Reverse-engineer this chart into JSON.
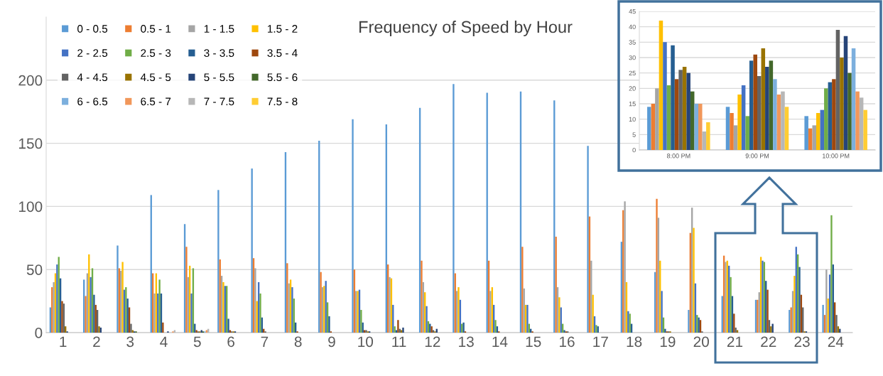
{
  "chart_data": [
    {
      "type": "bar",
      "title": "Frequency of Speed by Hour",
      "categories": [
        "1",
        "2",
        "3",
        "4",
        "5",
        "6",
        "7",
        "8",
        "9",
        "10",
        "11",
        "12",
        "13",
        "14",
        "15",
        "16",
        "17",
        "18",
        "19",
        "20",
        "21",
        "22",
        "23",
        "24"
      ],
      "series": [
        {
          "name": "0 - 0.5",
          "color": "#5b9bd5",
          "values": [
            20,
            42,
            69,
            109,
            86,
            113,
            130,
            143,
            152,
            169,
            165,
            178,
            197,
            190,
            191,
            184,
            148,
            72,
            48,
            18,
            29,
            26,
            18,
            22
          ]
        },
        {
          "name": "0.5 - 1",
          "color": "#ed7d31",
          "values": [
            36,
            29,
            51,
            47,
            68,
            58,
            59,
            55,
            48,
            50,
            54,
            57,
            47,
            57,
            68,
            76,
            92,
            97,
            106,
            79,
            61,
            26,
            20,
            14
          ]
        },
        {
          "name": "1 - 1.5",
          "color": "#a5a5a5",
          "values": [
            40,
            47,
            49,
            31,
            44,
            45,
            51,
            39,
            36,
            33,
            44,
            40,
            33,
            33,
            35,
            36,
            57,
            104,
            91,
            99,
            56,
            32,
            33,
            50
          ]
        },
        {
          "name": "1.5 - 2",
          "color": "#ffc000",
          "values": [
            47,
            62,
            56,
            47,
            53,
            40,
            25,
            42,
            37,
            33,
            43,
            32,
            36,
            36,
            22,
            28,
            30,
            40,
            57,
            83,
            57,
            60,
            45,
            27
          ]
        },
        {
          "name": "2 - 2.5",
          "color": "#4472c4",
          "values": [
            54,
            44,
            34,
            31,
            31,
            37,
            40,
            36,
            41,
            34,
            22,
            21,
            26,
            22,
            22,
            20,
            13,
            17,
            33,
            39,
            53,
            57,
            68,
            46
          ]
        },
        {
          "name": "2.5 - 3",
          "color": "#70ad47",
          "values": [
            60,
            51,
            36,
            42,
            51,
            37,
            31,
            27,
            24,
            18,
            5,
            9,
            7,
            10,
            7,
            7,
            6,
            15,
            12,
            14,
            44,
            56,
            62,
            93
          ]
        },
        {
          "name": "3 - 3.5",
          "color": "#255e91",
          "values": [
            43,
            30,
            27,
            31,
            7,
            11,
            12,
            8,
            13,
            8,
            2,
            7,
            8,
            5,
            3,
            2,
            5,
            7,
            3,
            12,
            29,
            41,
            52,
            54
          ]
        },
        {
          "name": "3.5 - 4",
          "color": "#9e480e",
          "values": [
            25,
            22,
            20,
            8,
            2,
            2,
            3,
            1,
            1,
            2,
            10,
            5,
            1,
            1,
            1,
            1,
            0,
            0,
            1,
            10,
            15,
            34,
            30,
            24
          ]
        },
        {
          "name": "4 - 4.5",
          "color": "#636363",
          "values": [
            23,
            18,
            7,
            0,
            1,
            1,
            1,
            0,
            0,
            2,
            3,
            2,
            0,
            0,
            0,
            1,
            0,
            0,
            1,
            1,
            4,
            10,
            20,
            14
          ]
        },
        {
          "name": "4.5 - 5",
          "color": "#997300",
          "values": [
            5,
            5,
            2,
            0,
            1,
            1,
            0,
            0,
            0,
            1,
            2,
            1,
            0,
            0,
            0,
            0,
            0,
            0,
            1,
            0,
            2,
            5,
            1,
            5
          ]
        },
        {
          "name": "5 - 5.5",
          "color": "#264478",
          "values": [
            1,
            4,
            1,
            1,
            2,
            1,
            0,
            0,
            0,
            1,
            4,
            3,
            0,
            0,
            0,
            0,
            0,
            0,
            0,
            0,
            0,
            7,
            1,
            3
          ]
        },
        {
          "name": "5.5 - 6",
          "color": "#43682b",
          "values": [
            0,
            0,
            1,
            0,
            1,
            0,
            0,
            0,
            0,
            0,
            0,
            0,
            0,
            0,
            0,
            0,
            0,
            0,
            0,
            0,
            0,
            0,
            0,
            0
          ]
        },
        {
          "name": "6 - 6.5",
          "color": "#7cafdd",
          "values": [
            0,
            0,
            0,
            0,
            1,
            0,
            0,
            0,
            0,
            0,
            0,
            0,
            0,
            0,
            0,
            0,
            0,
            0,
            0,
            0,
            0,
            0,
            0,
            0
          ]
        },
        {
          "name": "6.5 - 7",
          "color": "#f1975a",
          "values": [
            0,
            0,
            0,
            1,
            2,
            0,
            0,
            0,
            0,
            0,
            0,
            0,
            0,
            0,
            0,
            0,
            0,
            0,
            0,
            0,
            0,
            0,
            0,
            0
          ]
        },
        {
          "name": "7 - 7.5",
          "color": "#b7b7b7",
          "values": [
            0,
            0,
            0,
            2,
            3,
            0,
            0,
            0,
            0,
            0,
            0,
            0,
            0,
            0,
            0,
            0,
            0,
            0,
            0,
            0,
            0,
            0,
            0,
            0
          ]
        },
        {
          "name": "7.5 - 8",
          "color": "#ffcd33",
          "values": [
            0,
            0,
            0,
            0,
            0,
            0,
            0,
            0,
            0,
            0,
            0,
            0,
            0,
            0,
            0,
            0,
            0,
            0,
            0,
            0,
            0,
            0,
            0,
            0
          ]
        }
      ],
      "ylim": [
        0,
        250
      ],
      "yticks": [
        0,
        50,
        100,
        150,
        200
      ],
      "grid": "y",
      "legend": "top left"
    },
    {
      "type": "bar",
      "categories": [
        "8:00 PM",
        "9:00 PM",
        "10:00 PM"
      ],
      "series": [
        {
          "color": "#5b9bd5",
          "values": [
            14,
            14,
            11
          ]
        },
        {
          "color": "#ed7d31",
          "values": [
            15,
            12,
            7
          ]
        },
        {
          "color": "#a5a5a5",
          "values": [
            20,
            8,
            8
          ]
        },
        {
          "color": "#ffc000",
          "values": [
            42,
            18,
            12
          ]
        },
        {
          "color": "#4472c4",
          "values": [
            35,
            21,
            13
          ]
        },
        {
          "color": "#70ad47",
          "values": [
            21,
            11,
            20
          ]
        },
        {
          "color": "#255e91",
          "values": [
            34,
            29,
            22
          ]
        },
        {
          "color": "#9e480e",
          "values": [
            23,
            31,
            23
          ]
        },
        {
          "color": "#636363",
          "values": [
            26,
            24,
            39
          ]
        },
        {
          "color": "#997300",
          "values": [
            27,
            33,
            30
          ]
        },
        {
          "color": "#264478",
          "values": [
            25,
            27,
            37
          ]
        },
        {
          "color": "#43682b",
          "values": [
            19,
            29,
            25
          ]
        },
        {
          "color": "#7cafdd",
          "values": [
            15,
            23,
            33
          ]
        },
        {
          "color": "#f1975a",
          "values": [
            15,
            18,
            19
          ]
        },
        {
          "color": "#b7b7b7",
          "values": [
            6,
            19,
            17
          ]
        },
        {
          "color": "#ffcd33",
          "values": [
            9,
            14,
            13
          ]
        }
      ],
      "ylim": [
        0,
        45
      ],
      "yticks": [
        0,
        5,
        10,
        15,
        20,
        25,
        30,
        35,
        40,
        45
      ],
      "grid": "y"
    }
  ]
}
